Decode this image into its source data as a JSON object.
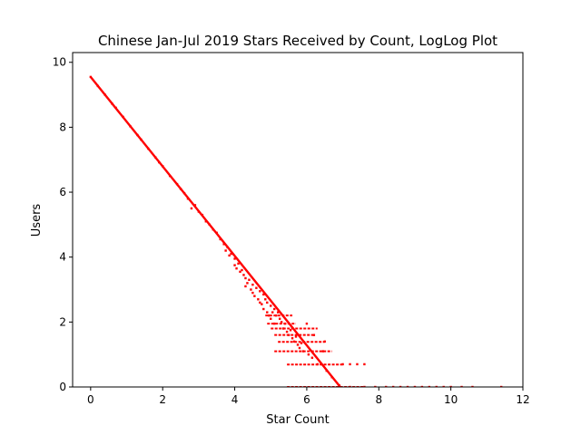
{
  "chart_data": {
    "type": "scatter",
    "title": "Chinese Jan-Jul 2019 Stars Received by Count, LogLog Plot",
    "xlabel": "Star Count",
    "ylabel": "Users",
    "xlim": [
      -0.5,
      12
    ],
    "ylim": [
      0,
      10.3
    ],
    "xticks": [
      0,
      2,
      4,
      6,
      8,
      10,
      12
    ],
    "yticks": [
      0,
      2,
      4,
      6,
      8,
      10
    ],
    "grid": false,
    "marker_color": "#ff0000",
    "series": [
      {
        "fit_line": {
          "x": [
            0,
            6.93
          ],
          "y": [
            9.55,
            0
          ]
        },
        "points": [
          [
            0.0,
            9.55
          ],
          [
            0.2,
            9.27
          ],
          [
            0.4,
            9.0
          ],
          [
            0.6,
            8.72
          ],
          [
            0.7,
            8.6
          ],
          [
            0.9,
            8.32
          ],
          [
            1.1,
            8.03
          ],
          [
            1.3,
            7.76
          ],
          [
            1.4,
            7.62
          ],
          [
            1.6,
            7.34
          ],
          [
            1.8,
            7.07
          ],
          [
            1.9,
            6.92
          ],
          [
            2.0,
            6.8
          ],
          [
            2.2,
            6.5
          ],
          [
            2.4,
            6.25
          ],
          [
            2.5,
            6.1
          ],
          [
            2.6,
            5.97
          ],
          [
            2.7,
            5.8
          ],
          [
            2.8,
            5.5
          ],
          [
            2.9,
            5.6
          ],
          [
            3.0,
            5.4
          ],
          [
            3.1,
            5.3
          ],
          [
            3.2,
            5.1
          ],
          [
            3.3,
            5.0
          ],
          [
            3.4,
            4.85
          ],
          [
            3.5,
            4.75
          ],
          [
            3.6,
            4.55
          ],
          [
            3.7,
            4.4
          ],
          [
            3.75,
            4.2
          ],
          [
            3.8,
            4.3
          ],
          [
            3.85,
            4.05
          ],
          [
            3.9,
            4.1
          ],
          [
            4.0,
            3.95
          ],
          [
            4.0,
            3.75
          ],
          [
            4.05,
            3.65
          ],
          [
            4.1,
            3.8
          ],
          [
            4.15,
            3.55
          ],
          [
            4.2,
            3.6
          ],
          [
            4.25,
            3.45
          ],
          [
            4.3,
            3.35
          ],
          [
            4.3,
            3.1
          ],
          [
            4.35,
            3.2
          ],
          [
            4.4,
            3.3
          ],
          [
            4.45,
            3.0
          ],
          [
            4.5,
            3.15
          ],
          [
            4.5,
            2.9
          ],
          [
            4.55,
            2.8
          ],
          [
            4.6,
            3.05
          ],
          [
            4.65,
            2.7
          ],
          [
            4.7,
            2.95
          ],
          [
            4.7,
            2.6
          ],
          [
            4.75,
            2.55
          ],
          [
            4.8,
            2.85
          ],
          [
            4.8,
            2.4
          ],
          [
            4.85,
            2.7
          ],
          [
            4.9,
            2.6
          ],
          [
            4.9,
            2.3
          ],
          [
            4.95,
            2.2
          ],
          [
            5.0,
            2.5
          ],
          [
            5.0,
            2.1
          ],
          [
            5.05,
            2.3
          ],
          [
            5.1,
            2.4
          ],
          [
            5.1,
            1.95
          ],
          [
            5.15,
            2.2
          ],
          [
            5.2,
            2.3
          ],
          [
            5.25,
            2.1
          ],
          [
            5.3,
            2.0
          ],
          [
            5.35,
            1.8
          ],
          [
            5.4,
            1.95
          ],
          [
            5.45,
            1.7
          ],
          [
            5.5,
            1.6
          ],
          [
            5.55,
            1.75
          ],
          [
            5.6,
            1.5
          ],
          [
            5.65,
            1.4
          ],
          [
            5.7,
            1.55
          ],
          [
            5.75,
            1.3
          ],
          [
            5.8,
            1.2
          ],
          [
            5.85,
            1.35
          ],
          [
            5.9,
            1.1
          ],
          [
            6.0,
            1.95
          ],
          [
            6.05,
            1.0
          ],
          [
            6.15,
            0.9
          ],
          [
            6.2,
            1.6
          ],
          [
            6.3,
            0.7
          ],
          [
            6.45,
            1.1
          ],
          [
            6.5,
            1.4
          ],
          [
            6.55,
            0.5
          ],
          [
            6.7,
            0.3
          ],
          [
            6.9,
            0.05
          ],
          [
            7.0,
            0.7
          ],
          [
            7.2,
            0.7
          ],
          [
            7.4,
            0.7
          ],
          [
            7.6,
            0.7
          ],
          [
            7.2,
            0.0
          ],
          [
            7.6,
            0.0
          ],
          [
            7.9,
            0.0
          ],
          [
            8.2,
            0.0
          ],
          [
            8.4,
            0.0
          ],
          [
            8.6,
            0.0
          ],
          [
            8.8,
            0.0
          ],
          [
            9.0,
            0.0
          ],
          [
            9.2,
            0.0
          ],
          [
            9.4,
            0.0
          ],
          [
            9.6,
            0.0
          ],
          [
            9.8,
            0.0
          ],
          [
            10.0,
            0.0
          ],
          [
            10.3,
            0.0
          ],
          [
            10.6,
            0.0
          ],
          [
            11.4,
            0.0
          ]
        ],
        "bands": [
          {
            "y": 2.2,
            "x": [
              4.85,
              5.6
            ]
          },
          {
            "y": 1.95,
            "x": [
              4.9,
              5.7
            ]
          },
          {
            "y": 1.8,
            "x": [
              5.0,
              6.3
            ]
          },
          {
            "y": 1.6,
            "x": [
              5.1,
              6.2
            ]
          },
          {
            "y": 1.39,
            "x": [
              5.2,
              6.5
            ]
          },
          {
            "y": 1.1,
            "x": [
              5.1,
              6.7
            ]
          },
          {
            "y": 0.69,
            "x": [
              5.45,
              7.0
            ]
          },
          {
            "y": 0.0,
            "x": [
              5.45,
              7.6
            ]
          }
        ]
      }
    ]
  }
}
